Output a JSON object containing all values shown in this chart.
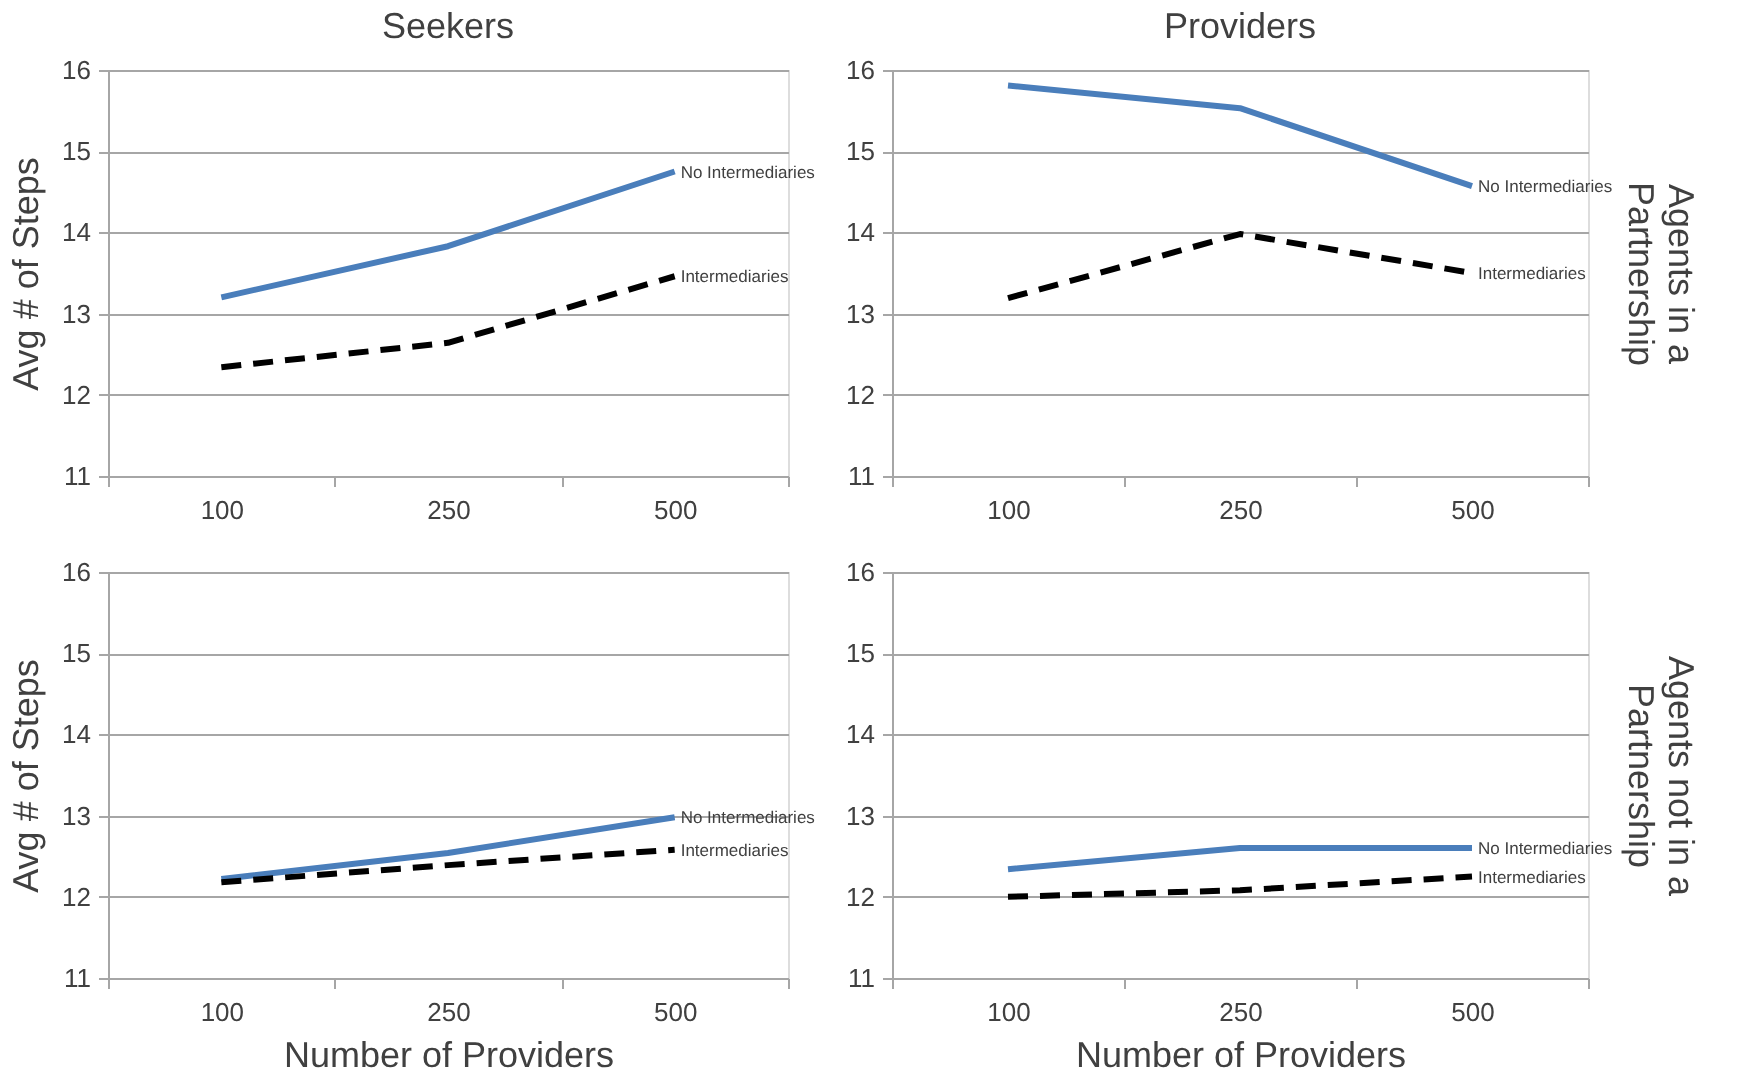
{
  "chart_data": [
    {
      "type": "line",
      "title": "Seekers",
      "ylabel": "Avg # of Steps",
      "categories": [
        "100",
        "250",
        "500"
      ],
      "series": [
        {
          "name": "No Intermediaries",
          "color": "#4a7ebb",
          "line_style": "solid",
          "values": [
            13.2,
            13.83,
            14.75
          ]
        },
        {
          "name": "Intermediaries",
          "color": "#000000",
          "line_style": "dashed",
          "values": [
            12.34,
            12.64,
            13.46
          ]
        }
      ],
      "ylim": [
        11,
        16
      ],
      "yticks": [
        11,
        12,
        13,
        14,
        15,
        16
      ],
      "grid": "y"
    },
    {
      "type": "line",
      "title": "Providers",
      "y2label": "Agents in a Partnership",
      "categories": [
        "100",
        "250",
        "500"
      ],
      "series": [
        {
          "name": "No Intermediaries",
          "color": "#4a7ebb",
          "line_style": "solid",
          "values": [
            15.81,
            15.53,
            14.57
          ]
        },
        {
          "name": "Intermediaries",
          "color": "#000000",
          "line_style": "dashed",
          "values": [
            13.19,
            13.98,
            13.5
          ]
        }
      ],
      "ylim": [
        11,
        16
      ],
      "yticks": [
        11,
        12,
        13,
        14,
        15,
        16
      ],
      "grid": "y"
    },
    {
      "type": "line",
      "ylabel": "Avg # of Steps",
      "xlabel": "Number of Providers",
      "categories": [
        "100",
        "250",
        "500"
      ],
      "series": [
        {
          "name": "No Intermediaries",
          "color": "#4a7ebb",
          "line_style": "solid",
          "values": [
            12.22,
            12.54,
            12.98
          ]
        },
        {
          "name": "Intermediaries",
          "color": "#000000",
          "line_style": "dashed",
          "values": [
            12.18,
            12.39,
            12.58
          ]
        }
      ],
      "ylim": [
        11,
        16
      ],
      "yticks": [
        11,
        12,
        13,
        14,
        15,
        16
      ],
      "grid": "y"
    },
    {
      "type": "line",
      "xlabel": "Number of Providers",
      "y2label": "Agents not in a Partnership",
      "categories": [
        "100",
        "250",
        "500"
      ],
      "series": [
        {
          "name": "No Intermediaries",
          "color": "#4a7ebb",
          "line_style": "solid",
          "values": [
            12.34,
            12.6,
            12.6
          ]
        },
        {
          "name": "Intermediaries",
          "color": "#000000",
          "line_style": "dashed",
          "values": [
            12.0,
            12.08,
            12.25
          ]
        }
      ],
      "ylim": [
        11,
        16
      ],
      "yticks": [
        11,
        12,
        13,
        14,
        15,
        16
      ],
      "grid": "y"
    }
  ]
}
